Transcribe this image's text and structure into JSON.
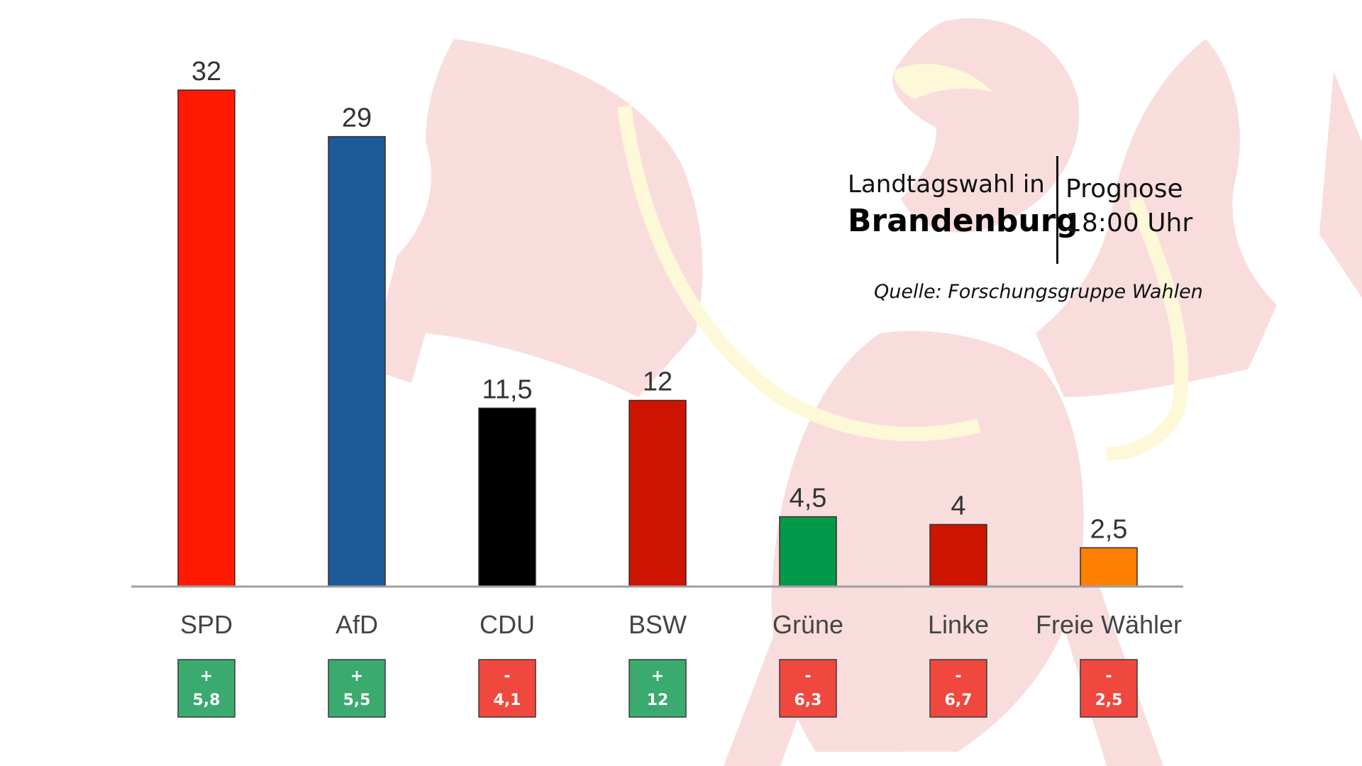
{
  "header": {
    "line1": "Landtagswahl in",
    "line2": "Brandenburg",
    "right1": "Prognose",
    "right2": "18:00 Uhr"
  },
  "source": "Quelle: Forschungsgruppe Wahlen",
  "chart_data": {
    "type": "bar",
    "title": "Landtagswahl in Brandenburg",
    "subtitle": "Prognose 18:00 Uhr",
    "xlabel": "",
    "ylabel": "",
    "ylim": [
      0,
      32
    ],
    "grid": false,
    "legend": "none",
    "categories": [
      "SPD",
      "AfD",
      "CDU",
      "BSW",
      "Grüne",
      "Linke",
      "Freie Wähler"
    ],
    "values": [
      32,
      29,
      11.5,
      12,
      4.5,
      4,
      2.5
    ],
    "value_labels": [
      "32",
      "29",
      "11,5",
      "12",
      "4,5",
      "4",
      "2,5"
    ],
    "colors": [
      "#ff1a00",
      "#1c5a99",
      "#000000",
      "#cc1400",
      "#009a4a",
      "#cc1400",
      "#ff8000"
    ],
    "changes": [
      5.8,
      5.5,
      -4.1,
      12,
      -6.3,
      -6.7,
      -2.5
    ],
    "change_labels": [
      {
        "sign": "+",
        "value": "5,8"
      },
      {
        "sign": "+",
        "value": "5,5"
      },
      {
        "sign": "-",
        "value": "4,1"
      },
      {
        "sign": "+",
        "value": "12"
      },
      {
        "sign": "-",
        "value": "6,3"
      },
      {
        "sign": "-",
        "value": "6,7"
      },
      {
        "sign": "-",
        "value": "2,5"
      }
    ],
    "change_colors": {
      "positive": "#3aaa6e",
      "negative": "#f0483e"
    }
  },
  "background": {
    "emblem_color": "#d92020",
    "accent_color": "#f2d200",
    "opacity": 0.15
  }
}
